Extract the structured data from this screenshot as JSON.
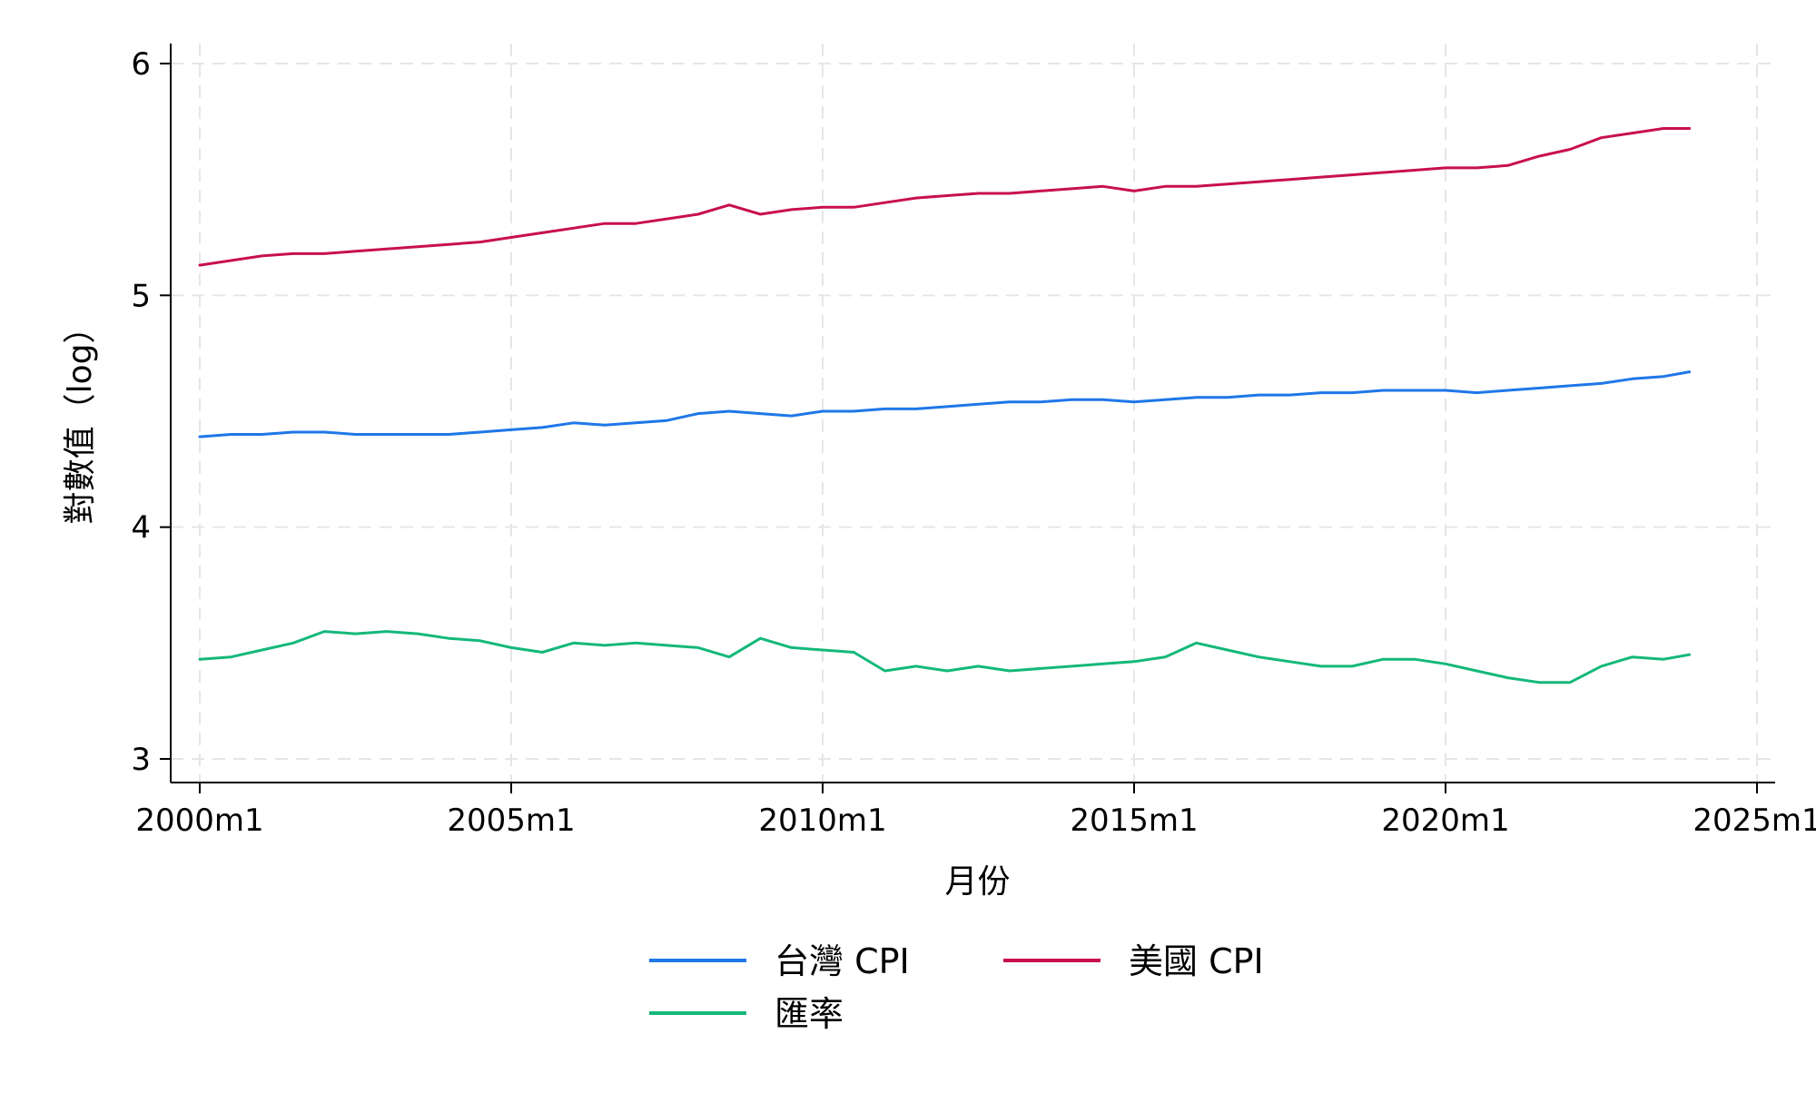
{
  "chart_data": {
    "type": "line",
    "title": "",
    "xlabel": "月份",
    "ylabel": "對數值（log）",
    "ylim": [
      2.95,
      6.1
    ],
    "yticks": [
      3,
      4,
      5,
      6
    ],
    "yticklabels": [
      "3",
      "4",
      "5",
      "6"
    ],
    "xlim": [
      "2000-01",
      "2025-06"
    ],
    "xticks": [
      "2000-01",
      "2005-01",
      "2010-01",
      "2015-01",
      "2020-01",
      "2025-01"
    ],
    "xticklabels": [
      "2000m1",
      "2005m1",
      "2010m1",
      "2015m1",
      "2020m1",
      "2025m1"
    ],
    "grid": true,
    "legend_position": "bottom",
    "x": [
      "2000-01",
      "2000-07",
      "2001-01",
      "2001-07",
      "2002-01",
      "2002-07",
      "2003-01",
      "2003-07",
      "2004-01",
      "2004-07",
      "2005-01",
      "2005-07",
      "2006-01",
      "2006-07",
      "2007-01",
      "2007-07",
      "2008-01",
      "2008-07",
      "2009-01",
      "2009-07",
      "2010-01",
      "2010-07",
      "2011-01",
      "2011-07",
      "2012-01",
      "2012-07",
      "2013-01",
      "2013-07",
      "2014-01",
      "2014-07",
      "2015-01",
      "2015-07",
      "2016-01",
      "2016-07",
      "2017-01",
      "2017-07",
      "2018-01",
      "2018-07",
      "2019-01",
      "2019-07",
      "2020-01",
      "2020-07",
      "2021-01",
      "2021-07",
      "2022-01",
      "2022-07",
      "2023-01",
      "2023-07",
      "2023-12"
    ],
    "series": [
      {
        "name": "台灣 CPI",
        "color": "#1f77e8",
        "values": [
          4.39,
          4.4,
          4.4,
          4.41,
          4.41,
          4.4,
          4.4,
          4.4,
          4.4,
          4.41,
          4.42,
          4.43,
          4.45,
          4.44,
          4.45,
          4.46,
          4.49,
          4.5,
          4.49,
          4.48,
          4.5,
          4.5,
          4.51,
          4.51,
          4.52,
          4.53,
          4.54,
          4.54,
          4.55,
          4.55,
          4.54,
          4.55,
          4.56,
          4.56,
          4.57,
          4.57,
          4.58,
          4.58,
          4.59,
          4.59,
          4.59,
          4.58,
          4.59,
          4.6,
          4.61,
          4.62,
          4.64,
          4.65,
          4.67
        ]
      },
      {
        "name": "美國 CPI",
        "color": "#c8104f",
        "values": [
          5.13,
          5.15,
          5.17,
          5.18,
          5.18,
          5.19,
          5.2,
          5.21,
          5.22,
          5.23,
          5.25,
          5.27,
          5.29,
          5.31,
          5.31,
          5.33,
          5.35,
          5.39,
          5.35,
          5.37,
          5.38,
          5.38,
          5.4,
          5.42,
          5.43,
          5.44,
          5.44,
          5.45,
          5.46,
          5.47,
          5.45,
          5.47,
          5.47,
          5.48,
          5.49,
          5.5,
          5.51,
          5.52,
          5.53,
          5.54,
          5.55,
          5.55,
          5.56,
          5.6,
          5.63,
          5.68,
          5.7,
          5.72,
          5.72
        ]
      },
      {
        "name": "匯率",
        "color": "#14b87a",
        "values": [
          3.43,
          3.44,
          3.47,
          3.5,
          3.55,
          3.54,
          3.55,
          3.54,
          3.52,
          3.51,
          3.48,
          3.46,
          3.5,
          3.49,
          3.5,
          3.49,
          3.48,
          3.44,
          3.52,
          3.48,
          3.47,
          3.46,
          3.38,
          3.4,
          3.38,
          3.4,
          3.38,
          3.39,
          3.4,
          3.41,
          3.42,
          3.44,
          3.5,
          3.47,
          3.44,
          3.42,
          3.4,
          3.4,
          3.43,
          3.43,
          3.41,
          3.38,
          3.35,
          3.33,
          3.33,
          3.4,
          3.44,
          3.43,
          3.45
        ]
      }
    ]
  }
}
